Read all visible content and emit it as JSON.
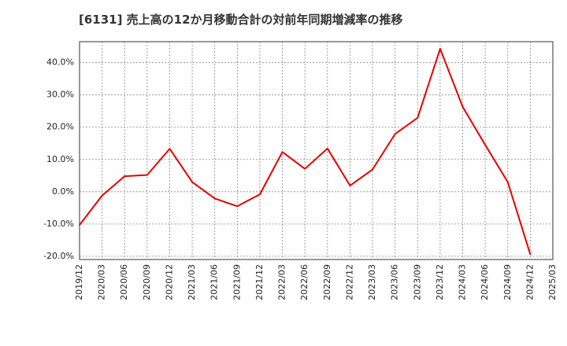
{
  "chart_data": {
    "type": "line",
    "title": "[6131]  売上高の12か月移動合計の対前年同期増減率の推移",
    "xlabel": "",
    "ylabel": "",
    "ylim": [
      -21,
      46.5
    ],
    "y_ticks": [
      40,
      30,
      20,
      10,
      0,
      -10,
      -20
    ],
    "y_tick_labels": [
      "40.0%",
      "30.0%",
      "20.0%",
      "10.0%",
      "0.0%",
      "-10.0%",
      "-20.0%"
    ],
    "categories": [
      "2019/12",
      "2020/03",
      "2020/06",
      "2020/09",
      "2020/12",
      "2021/03",
      "2021/06",
      "2021/09",
      "2021/12",
      "2022/03",
      "2022/06",
      "2022/09",
      "2022/12",
      "2023/03",
      "2023/06",
      "2023/09",
      "2023/12",
      "2024/03",
      "2024/06",
      "2024/09",
      "2024/12",
      "2025/03"
    ],
    "series": [
      {
        "name": "対前年同期増減率",
        "color": "#e60000",
        "values": [
          -10.3,
          -1.2,
          4.8,
          5.2,
          13.3,
          3.0,
          -2.1,
          -4.5,
          -0.8,
          12.3,
          7.1,
          13.4,
          1.9,
          6.9,
          17.9,
          22.9,
          44.3,
          26.3,
          14.5,
          3.0,
          -19.4,
          null
        ]
      }
    ],
    "grid": true,
    "legend": "none"
  }
}
